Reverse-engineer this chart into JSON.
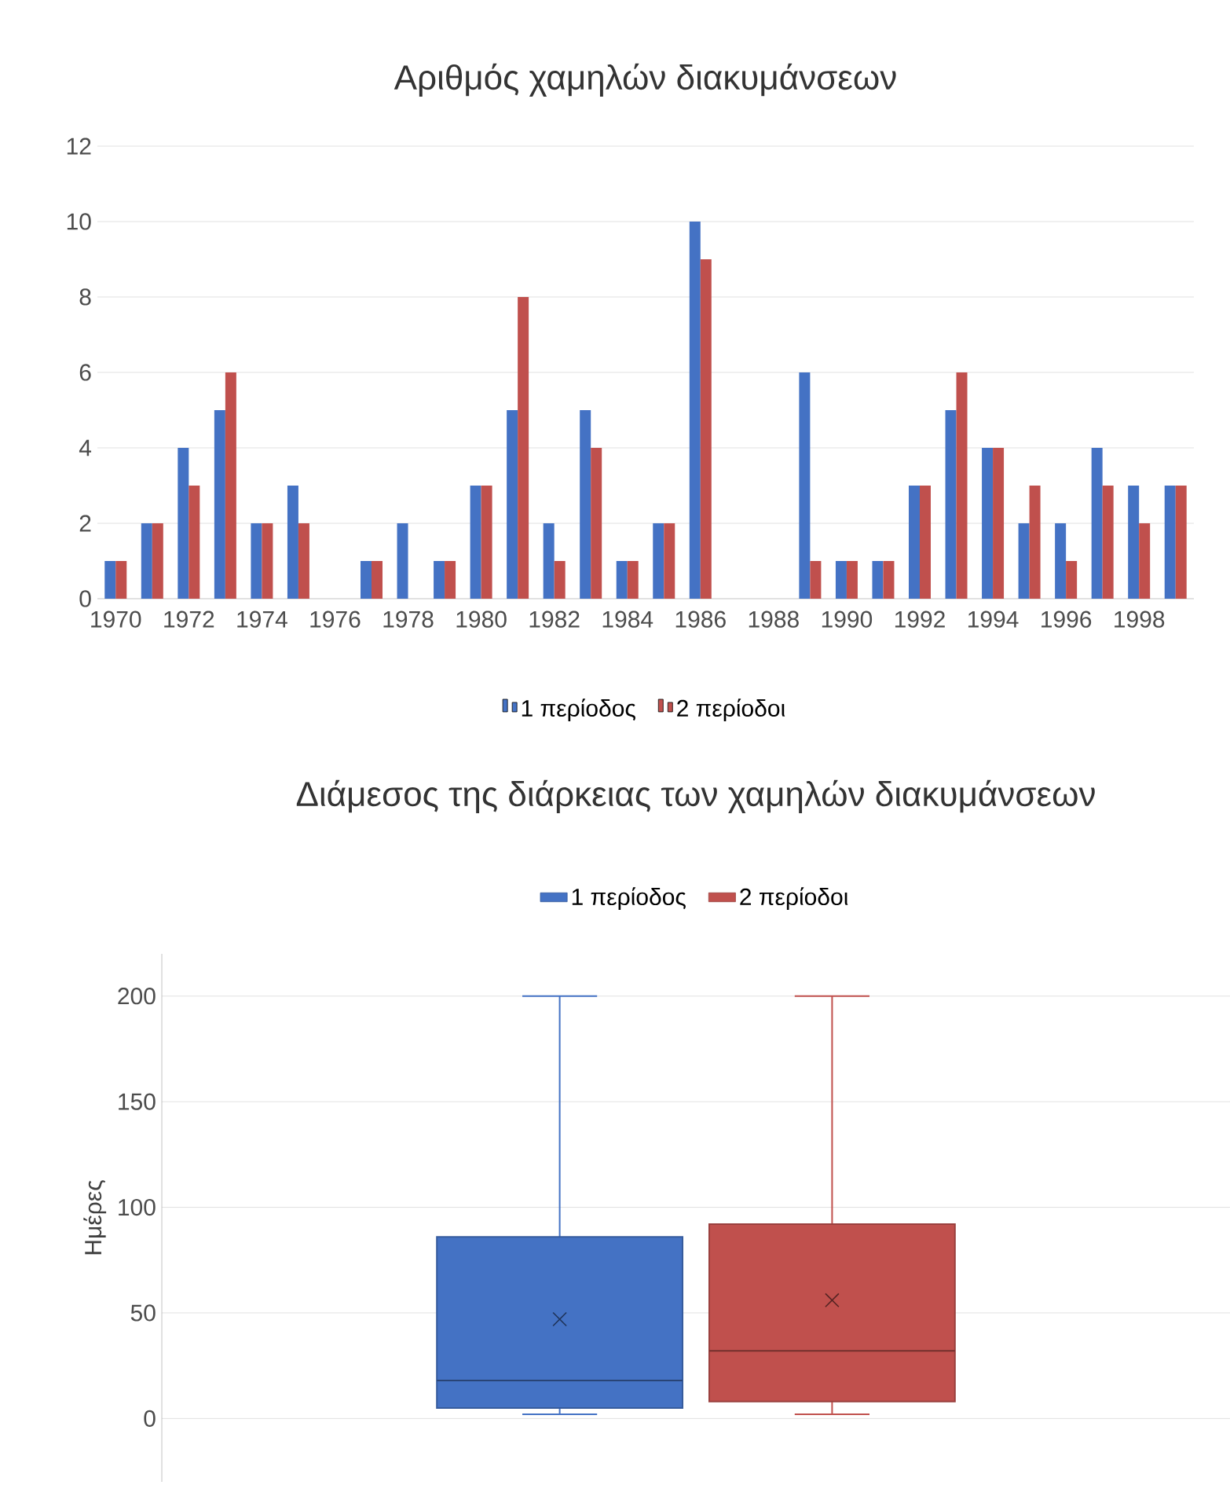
{
  "chart_data": [
    {
      "type": "bar",
      "title": "Αριθμός χαμηλών διακυμάνσεων",
      "categories": [
        "1970",
        null,
        "1972",
        null,
        "1974",
        null,
        "1976",
        null,
        "1978",
        null,
        "1980",
        null,
        "1982",
        null,
        "1984",
        null,
        "1986",
        null,
        "1988",
        null,
        "1990",
        null,
        "1992",
        null,
        "1994",
        null,
        "1996",
        null,
        "1998",
        null
      ],
      "series": [
        {
          "name": "1 περίοδος",
          "color": "#4472c4",
          "values": [
            1,
            2,
            4,
            5,
            2,
            3,
            0,
            1,
            2,
            1,
            3,
            5,
            2,
            5,
            1,
            2,
            10,
            0,
            0,
            6,
            1,
            1,
            3,
            5,
            4,
            2,
            2,
            4,
            3,
            3
          ]
        },
        {
          "name": "2 περίοδοι",
          "color": "#c0504d",
          "values": [
            1,
            2,
            3,
            6,
            2,
            2,
            0,
            1,
            0,
            1,
            3,
            8,
            1,
            4,
            1,
            2,
            9,
            0,
            0,
            1,
            1,
            1,
            3,
            6,
            4,
            3,
            1,
            3,
            2,
            3
          ]
        }
      ],
      "ylim": [
        0,
        12
      ],
      "yticks": [
        0,
        2,
        4,
        6,
        8,
        10,
        12
      ],
      "grid": "y",
      "legend": "bottom"
    },
    {
      "type": "box",
      "title": "Διάμεσος της διάρκειας των χαμηλών διακυμάνσεων",
      "ylabel": "Ημέρες",
      "categories": [
        null
      ],
      "series": [
        {
          "name": "1 περίοδος",
          "color": "#4472c4",
          "boxes": [
            {
              "low": 2,
              "q1": 5,
              "median": 18,
              "q3": 86,
              "high": 200,
              "mean": 47
            }
          ]
        },
        {
          "name": "2 περίοδοι",
          "color": "#c0504d",
          "boxes": [
            {
              "low": 2,
              "q1": 8,
              "median": 32,
              "q3": 92,
              "high": 200,
              "mean": 56
            }
          ]
        }
      ],
      "ylim": [
        -30,
        220
      ],
      "yticks": [
        0,
        50,
        100,
        150,
        200
      ],
      "grid": "y",
      "legend": "top",
      "tick_labels": "y"
    }
  ]
}
